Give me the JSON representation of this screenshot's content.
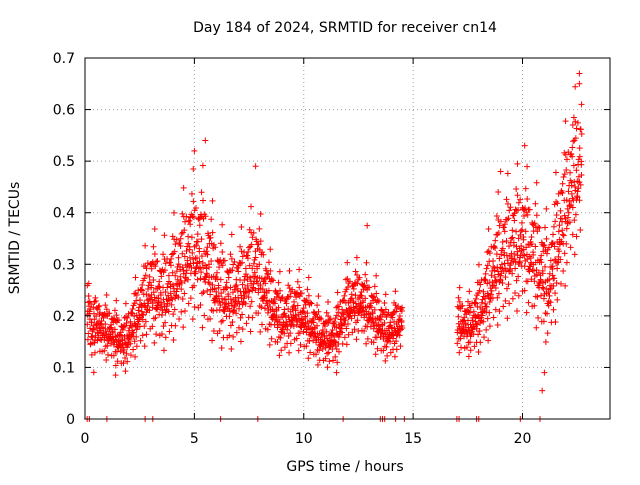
{
  "chart_data": {
    "type": "scatter",
    "title": "Day 184 of 2024, SRMTID for receiver cn14",
    "xlabel": "GPS time / hours",
    "ylabel": "SRMTID / TECUs",
    "xlim": [
      0,
      24
    ],
    "ylim": [
      0,
      0.7
    ],
    "xticks": [
      0,
      5,
      10,
      15,
      20
    ],
    "xtick_labels": [
      "0",
      "5",
      "10",
      "15",
      "20"
    ],
    "yticks": [
      0,
      0.1,
      0.2,
      0.3,
      0.4,
      0.5,
      0.6,
      0.7
    ],
    "ytick_labels": [
      "0",
      "0.1",
      "0.2",
      "0.3",
      "0.4",
      "0.5",
      "0.6",
      "0.7"
    ],
    "grid": true,
    "marker": "+",
    "series": [
      {
        "name": "SRMTID",
        "color": "#ff0000",
        "envelope_note": "Dense scatter of SRMTID values per epoch; represented as sampled points following the visible envelope.",
        "envelope": [
          {
            "x": 0.1,
            "mean": 0.19,
            "spread": 0.05
          },
          {
            "x": 0.6,
            "mean": 0.17,
            "spread": 0.04
          },
          {
            "x": 1.2,
            "mean": 0.16,
            "spread": 0.04
          },
          {
            "x": 1.8,
            "mean": 0.14,
            "spread": 0.04
          },
          {
            "x": 2.4,
            "mean": 0.19,
            "spread": 0.05
          },
          {
            "x": 3.0,
            "mean": 0.24,
            "spread": 0.07
          },
          {
            "x": 3.6,
            "mean": 0.22,
            "spread": 0.07
          },
          {
            "x": 4.2,
            "mean": 0.26,
            "spread": 0.08
          },
          {
            "x": 4.8,
            "mean": 0.31,
            "spread": 0.09
          },
          {
            "x": 5.4,
            "mean": 0.3,
            "spread": 0.1
          },
          {
            "x": 6.0,
            "mean": 0.24,
            "spread": 0.08
          },
          {
            "x": 6.6,
            "mean": 0.22,
            "spread": 0.07
          },
          {
            "x": 7.2,
            "mean": 0.24,
            "spread": 0.07
          },
          {
            "x": 7.8,
            "mean": 0.28,
            "spread": 0.08
          },
          {
            "x": 8.4,
            "mean": 0.22,
            "spread": 0.06
          },
          {
            "x": 9.0,
            "mean": 0.18,
            "spread": 0.05
          },
          {
            "x": 9.6,
            "mean": 0.2,
            "spread": 0.05
          },
          {
            "x": 10.2,
            "mean": 0.18,
            "spread": 0.05
          },
          {
            "x": 10.8,
            "mean": 0.15,
            "spread": 0.04
          },
          {
            "x": 11.4,
            "mean": 0.15,
            "spread": 0.04
          },
          {
            "x": 12.0,
            "mean": 0.21,
            "spread": 0.05
          },
          {
            "x": 12.6,
            "mean": 0.22,
            "spread": 0.05
          },
          {
            "x": 13.2,
            "mean": 0.19,
            "spread": 0.05
          },
          {
            "x": 13.8,
            "mean": 0.16,
            "spread": 0.04
          },
          {
            "x": 14.5,
            "mean": 0.18,
            "spread": 0.04
          },
          {
            "x": 17.0,
            "mean": 0.18,
            "spread": 0.04
          },
          {
            "x": 17.6,
            "mean": 0.17,
            "spread": 0.04
          },
          {
            "x": 18.2,
            "mean": 0.21,
            "spread": 0.06
          },
          {
            "x": 18.8,
            "mean": 0.28,
            "spread": 0.08
          },
          {
            "x": 19.4,
            "mean": 0.31,
            "spread": 0.09
          },
          {
            "x": 20.0,
            "mean": 0.33,
            "spread": 0.09
          },
          {
            "x": 20.6,
            "mean": 0.29,
            "spread": 0.09
          },
          {
            "x": 21.2,
            "mean": 0.24,
            "spread": 0.08
          },
          {
            "x": 21.8,
            "mean": 0.36,
            "spread": 0.1
          },
          {
            "x": 22.3,
            "mean": 0.44,
            "spread": 0.1
          },
          {
            "x": 22.7,
            "mean": 0.47,
            "spread": 0.11
          }
        ],
        "peaks": [
          {
            "x": 22.6,
            "y": 0.67
          },
          {
            "x": 22.6,
            "y": 0.65
          },
          {
            "x": 22.7,
            "y": 0.61
          },
          {
            "x": 22.3,
            "y": 0.57
          },
          {
            "x": 5.5,
            "y": 0.54
          },
          {
            "x": 20.1,
            "y": 0.53
          },
          {
            "x": 5.0,
            "y": 0.52
          },
          {
            "x": 7.8,
            "y": 0.49
          },
          {
            "x": 19.0,
            "y": 0.48
          },
          {
            "x": 12.9,
            "y": 0.375
          },
          {
            "x": 21.0,
            "y": 0.09
          },
          {
            "x": 20.9,
            "y": 0.055
          },
          {
            "x": 1.4,
            "y": 0.085
          },
          {
            "x": 11.5,
            "y": 0.09
          }
        ],
        "zero_marks_x": [
          0.1,
          0.2,
          1.0,
          2.75,
          3.1,
          6.2,
          7.9,
          11.8,
          13.5,
          13.6,
          13.7,
          14.2,
          14.6,
          17.0,
          17.1,
          17.9,
          18.0,
          19.9,
          20.8
        ]
      }
    ]
  }
}
